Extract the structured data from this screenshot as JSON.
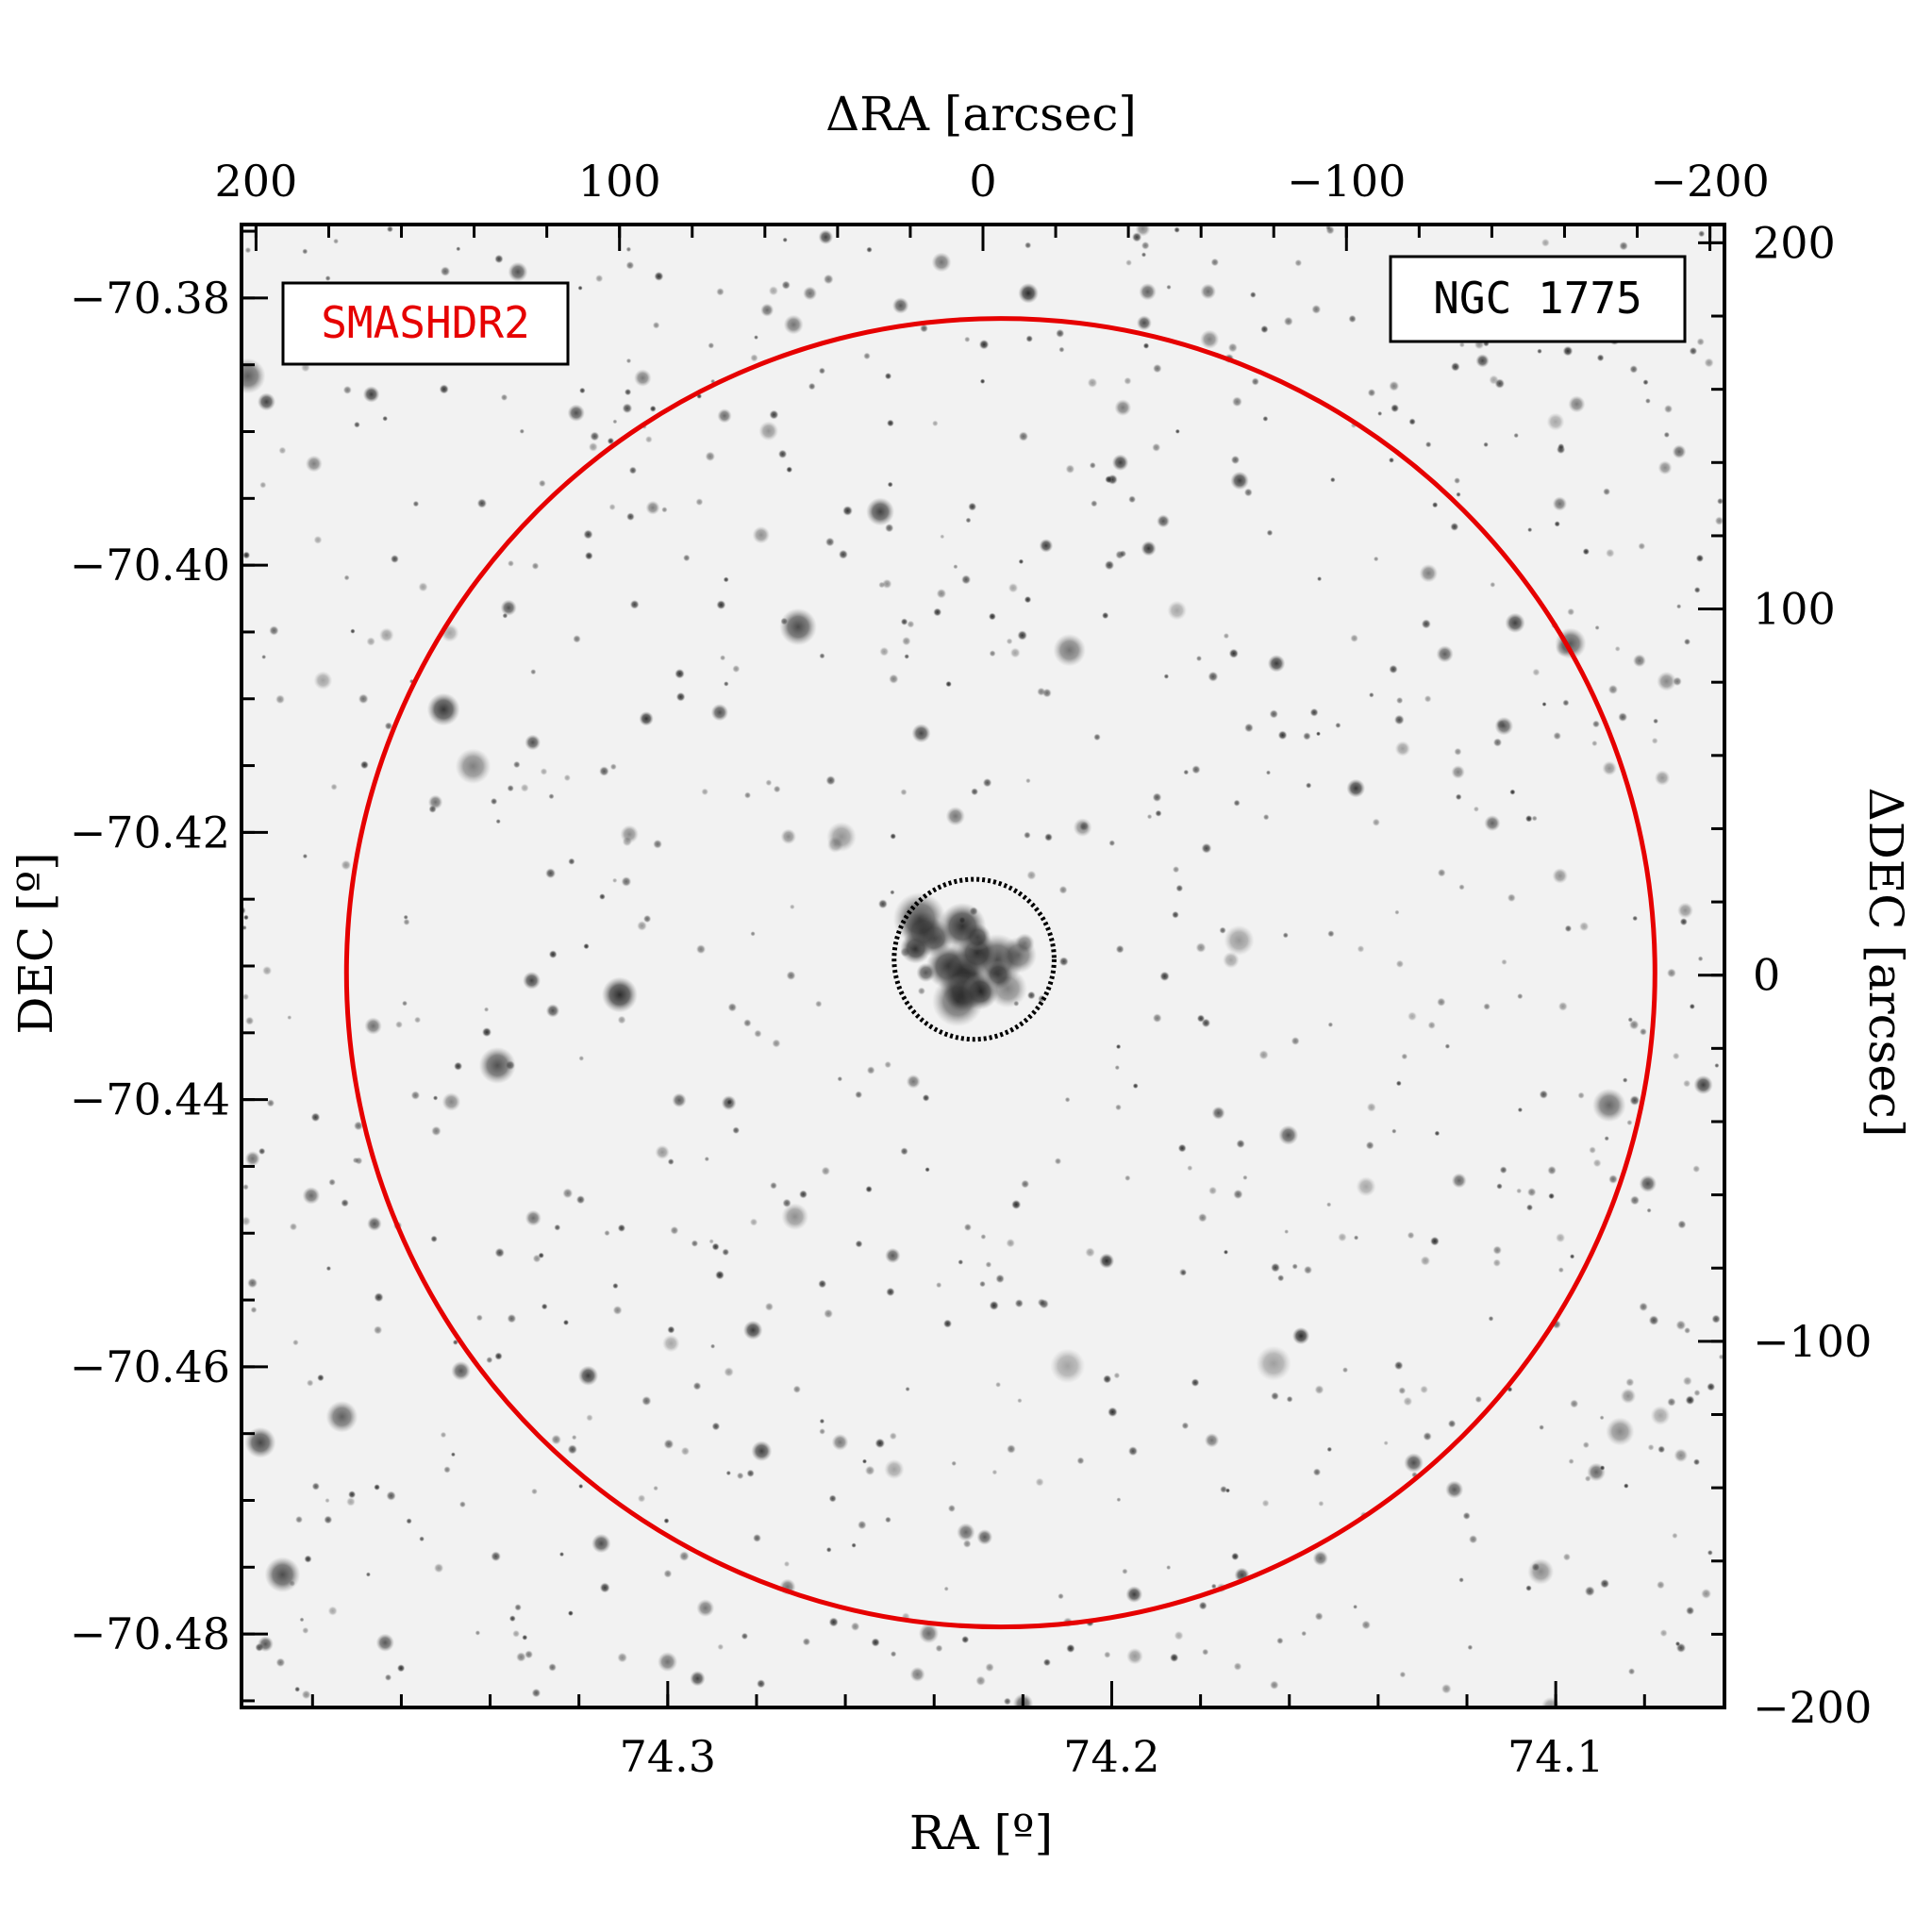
{
  "figure": {
    "object_label": "NGC 1775",
    "survey_label": "SMASHDR2",
    "survey_color": "#e60000",
    "frame_color": "#000000",
    "background_color": "#f2f2f2",
    "star_color": "#2a2a2a"
  },
  "axes": {
    "bottom": {
      "label": "RA [º]",
      "ticks": [
        74.3,
        74.2,
        74.1
      ],
      "tick_labels": [
        "74.3",
        "74.2",
        "74.1"
      ],
      "range": [
        74.396,
        74.062
      ]
    },
    "left": {
      "label": "DEC [º]",
      "ticks": [
        -70.38,
        -70.4,
        -70.42,
        -70.44,
        -70.46,
        -70.48
      ],
      "tick_labels": [
        "−70.38",
        "−70.40",
        "−70.42",
        "−70.44",
        "−70.46",
        "−70.48"
      ],
      "range": [
        -70.3745,
        -70.4855
      ]
    },
    "top": {
      "label": "ΔRA [arcsec]",
      "ticks": [
        200,
        100,
        0,
        -100,
        -200
      ],
      "tick_labels": [
        "200",
        "100",
        "0",
        "−100",
        "−200"
      ],
      "range": [
        204,
        -204
      ]
    },
    "right": {
      "label": "ΔDEC [arcsec]",
      "ticks": [
        200,
        100,
        0,
        -100,
        -200
      ],
      "tick_labels": [
        "200",
        "100",
        "0",
        "−100",
        "−200"
      ],
      "range": [
        205,
        -200
      ]
    }
  },
  "overlays": {
    "outer_circle": {
      "center_ra": 74.225,
      "center_dec": -70.4305,
      "radius_arcsec": 180,
      "color": "#e60000",
      "style": "solid"
    },
    "inner_circle": {
      "center_ra": 74.231,
      "center_dec": -70.4295,
      "radius_arcsec": 22,
      "color": "#000000",
      "style": "dotted"
    }
  }
}
